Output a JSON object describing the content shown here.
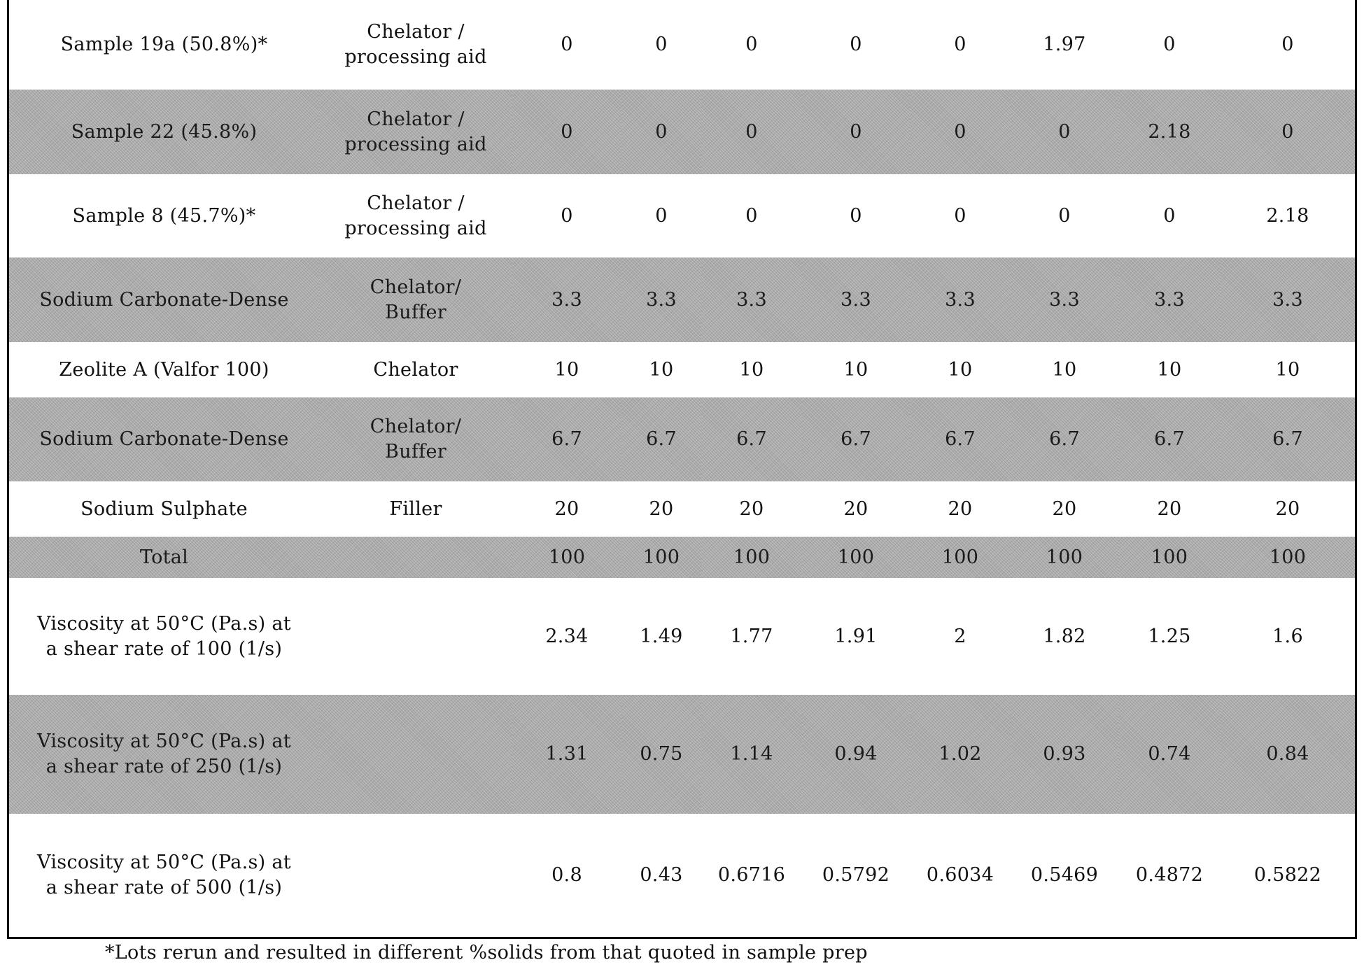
{
  "colors": {
    "stripe": "#a9a9a9",
    "text": "#111111",
    "border": "#000000"
  },
  "rows": [
    {
      "ingredient": "Sample 19a (50.8%)*",
      "function": "Chelator /\nprocessing aid",
      "values": [
        "0",
        "0",
        "0",
        "0",
        "0",
        "1.97",
        "0",
        "0"
      ]
    },
    {
      "ingredient": "Sample 22 (45.8%)",
      "function": "Chelator /\nprocessing aid",
      "values": [
        "0",
        "0",
        "0",
        "0",
        "0",
        "0",
        "2.18",
        "0"
      ]
    },
    {
      "ingredient": "Sample 8 (45.7%)*",
      "function": "Chelator /\nprocessing aid",
      "values": [
        "0",
        "0",
        "0",
        "0",
        "0",
        "0",
        "0",
        "2.18"
      ]
    },
    {
      "ingredient": "Sodium Carbonate-Dense",
      "function": "Chelator/\nBuffer",
      "values": [
        "3.3",
        "3.3",
        "3.3",
        "3.3",
        "3.3",
        "3.3",
        "3.3",
        "3.3"
      ]
    },
    {
      "ingredient": "Zeolite A (Valfor 100)",
      "function": "Chelator",
      "values": [
        "10",
        "10",
        "10",
        "10",
        "10",
        "10",
        "10",
        "10"
      ]
    },
    {
      "ingredient": "Sodium Carbonate-Dense",
      "function": "Chelator/\nBuffer",
      "values": [
        "6.7",
        "6.7",
        "6.7",
        "6.7",
        "6.7",
        "6.7",
        "6.7",
        "6.7"
      ]
    },
    {
      "ingredient": "Sodium Sulphate",
      "function": "Filler",
      "values": [
        "20",
        "20",
        "20",
        "20",
        "20",
        "20",
        "20",
        "20"
      ]
    },
    {
      "ingredient": "Total",
      "values": [
        "100",
        "100",
        "100",
        "100",
        "100",
        "100",
        "100",
        "100"
      ]
    },
    {
      "ingredient": "Viscosity at 50°C (Pa.s) at\na shear rate of 100 (1/s)",
      "values": [
        "2.34",
        "1.49",
        "1.77",
        "1.91",
        "2",
        "1.82",
        "1.25",
        "1.6"
      ]
    },
    {
      "ingredient": "Viscosity at 50°C (Pa.s) at\na shear rate of 250 (1/s)",
      "values": [
        "1.31",
        "0.75",
        "1.14",
        "0.94",
        "1.02",
        "0.93",
        "0.74",
        "0.84"
      ]
    },
    {
      "ingredient": "Viscosity at 50°C (Pa.s) at\na shear rate of 500 (1/s)",
      "values": [
        "0.8",
        "0.43",
        "0.6716",
        "0.5792",
        "0.6034",
        "0.5469",
        "0.4872",
        "0.5822"
      ]
    }
  ],
  "footnote": "*Lots rerun and resulted in different %solids from that quoted in sample prep"
}
